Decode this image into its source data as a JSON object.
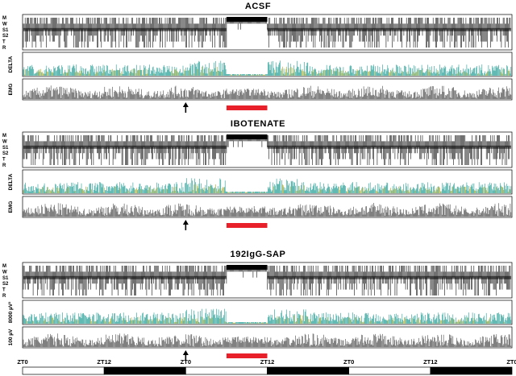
{
  "chart_data": {
    "type": "line",
    "panels": [
      {
        "title": "ACSF",
        "stage_labels": [
          "M",
          "W",
          "S1",
          "S2",
          "T",
          "R"
        ],
        "trace_labels": [
          "DELTA",
          "EMG"
        ],
        "deprivation_bar_color": "#e8202a"
      },
      {
        "title": "IBOTENATE",
        "stage_labels": [
          "M",
          "W",
          "S1",
          "S2",
          "T",
          "R"
        ],
        "trace_labels": [
          "DELTA",
          "EMG"
        ],
        "deprivation_bar_color": "#e8202a"
      },
      {
        "title": "192IgG-SAP",
        "stage_labels": [
          "M",
          "W",
          "S1",
          "S2",
          "T",
          "R"
        ],
        "trace_labels": [
          "8000 µV²",
          "100 µV"
        ],
        "deprivation_bar_color": "#e8202a"
      }
    ],
    "x_tick_labels": [
      "ZT0",
      "ZT12",
      "ZT0",
      "ZT12",
      "ZT0",
      "ZT12",
      "ZT0"
    ],
    "x_tick_hours": [
      0,
      12,
      24,
      36,
      48,
      60,
      72
    ],
    "xlim_hours": [
      0,
      72
    ],
    "light_dark_bar": [
      {
        "from": 0,
        "to": 12,
        "phase": "light"
      },
      {
        "from": 12,
        "to": 24,
        "phase": "dark"
      },
      {
        "from": 24,
        "to": 36,
        "phase": "light"
      },
      {
        "from": 36,
        "to": 48,
        "phase": "dark"
      },
      {
        "from": 48,
        "to": 60,
        "phase": "light"
      },
      {
        "from": 60,
        "to": 72,
        "phase": "dark"
      }
    ],
    "arrow_at_hours": 24,
    "deprivation_hours": [
      30,
      36
    ],
    "colors": {
      "delta_primary": "#1f9c93",
      "delta_secondary": "#a8a820",
      "emg": "#4a4a4a",
      "accent": "#e8202a"
    }
  }
}
